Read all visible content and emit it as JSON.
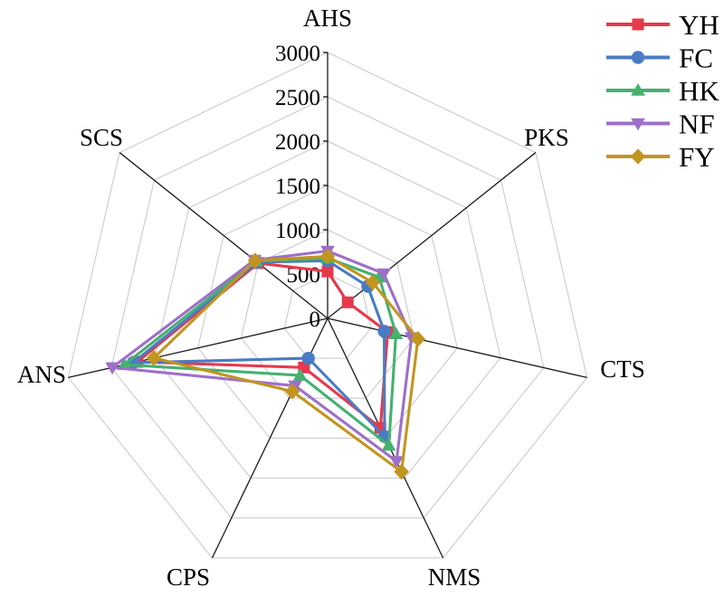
{
  "figure_title": "",
  "chart_data": {
    "type": "radar",
    "categories": [
      "AHS",
      "PKS",
      "CTS",
      "NMS",
      "CPS",
      "ANS",
      "SCS"
    ],
    "r_axis": {
      "min": 0,
      "max": 3000,
      "step": 500,
      "tick_labels": [
        "0",
        "500",
        "1000",
        "1500",
        "2000",
        "2500",
        "3000"
      ]
    },
    "grid": true,
    "grid_color": "#c6c6c6",
    "spoke_color": "#1a1a1a",
    "legend_position": "top-right",
    "series": [
      {
        "name": "YH",
        "color": "#e6394b",
        "marker": "square",
        "values": [
          530,
          290,
          695,
          1370,
          615,
          2200,
          1000
        ]
      },
      {
        "name": "FC",
        "color": "#4a7bc4",
        "marker": "circle",
        "values": [
          650,
          580,
          655,
          1480,
          500,
          2250,
          1015
        ]
      },
      {
        "name": "HK",
        "color": "#45b170",
        "marker": "triangle-up",
        "values": [
          680,
          745,
          790,
          1590,
          715,
          2350,
          1035
        ]
      },
      {
        "name": "NF",
        "color": "#9d6fc9",
        "marker": "triangle-down",
        "values": [
          760,
          810,
          970,
          1790,
          845,
          2490,
          1055
        ]
      },
      {
        "name": "FY",
        "color": "#c2951f",
        "marker": "diamond",
        "values": [
          700,
          650,
          1045,
          1920,
          915,
          2010,
          1045
        ]
      }
    ]
  }
}
